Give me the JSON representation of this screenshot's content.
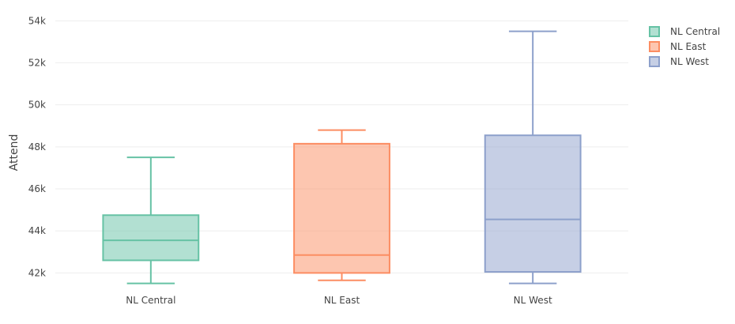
{
  "chart_data": {
    "type": "box",
    "title": "",
    "xlabel": "",
    "ylabel": "Attend",
    "ylim": [
      41300,
      54200
    ],
    "yticks": [
      42000,
      44000,
      46000,
      48000,
      50000,
      52000,
      54000
    ],
    "ytick_labels": [
      "42k",
      "44k",
      "46k",
      "48k",
      "50k",
      "52k",
      "54k"
    ],
    "categories": [
      "NL Central",
      "NL East",
      "NL West"
    ],
    "legend_position": "top-right",
    "grid": true,
    "series": [
      {
        "name": "NL Central",
        "color": "#66c2a5",
        "min": 41500,
        "q1": 42600,
        "median": 43550,
        "q3": 44750,
        "max": 47500
      },
      {
        "name": "NL East",
        "color": "#fc8d62",
        "min": 41650,
        "q1": 42000,
        "median": 42850,
        "q3": 48150,
        "max": 48800
      },
      {
        "name": "NL West",
        "color": "#8da0cb",
        "min": 41500,
        "q1": 42050,
        "median": 44550,
        "q3": 48550,
        "max": 53500
      }
    ]
  }
}
